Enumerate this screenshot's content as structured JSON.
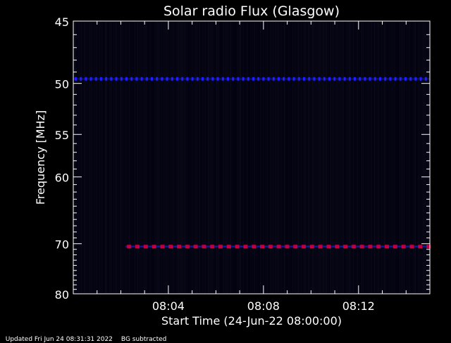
{
  "chart_data": {
    "type": "heatmap",
    "title": "Solar radio Flux (Glasgow)",
    "ylabel": "Frequency [MHz]",
    "xlabel": "Start Time (24-Jun-22 08:00:00)",
    "y_axis": {
      "scale": "reciprocal",
      "range": [
        45,
        80
      ],
      "ticks": [
        45,
        50,
        55,
        60,
        70,
        80
      ]
    },
    "x_axis": {
      "range_minutes": [
        0,
        15
      ],
      "tick_labels": [
        "08:04",
        "08:08",
        "08:12"
      ],
      "tick_minutes": [
        4,
        8,
        12
      ]
    },
    "grid": false,
    "colors": {
      "background": "#00000f",
      "band": "#2020ff",
      "band_hot": "#c00040",
      "axes": "#ffffff"
    },
    "features": [
      {
        "frequency_mhz": 49.6,
        "intensity": "medium",
        "pattern": "dashed",
        "minutes": [
          0,
          15
        ]
      },
      {
        "frequency_mhz": 70.5,
        "intensity": "high",
        "pattern": "dashed",
        "minutes": [
          2.2,
          15
        ]
      }
    ]
  },
  "footer": {
    "updated": "Updated Fri Jun 24 08:31:31 2022",
    "note": "BG subtracted"
  }
}
